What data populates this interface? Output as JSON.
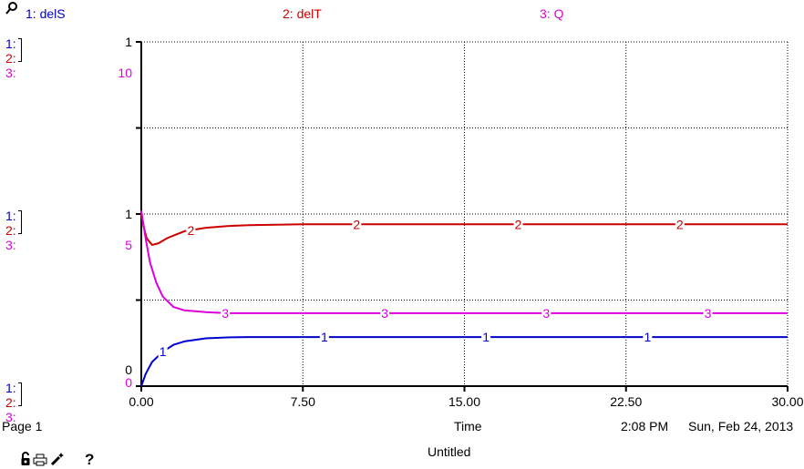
{
  "legend": [
    {
      "num": "1",
      "label": "1: delS",
      "color": "#0000cc"
    },
    {
      "num": "2",
      "label": "2: delT",
      "color": "#cc0000"
    },
    {
      "num": "3",
      "label": "3: Q",
      "color": "#dd00dd"
    }
  ],
  "axis_rows": [
    {
      "s1": "1",
      "s2": "1",
      "s3": "10",
      "prefixes": [
        "1:",
        "2:",
        "3:"
      ]
    },
    {
      "s1": "1",
      "s2": "",
      "s3": "5",
      "prefixes": [
        "1:",
        "2:",
        "3:"
      ]
    },
    {
      "s1": "0",
      "s2": "",
      "s3": "0",
      "prefixes": [
        "1:",
        "2:",
        "3:"
      ]
    }
  ],
  "footer": {
    "page": "Page 1",
    "xlabel": "Time",
    "time": "2:08 PM",
    "date": "Sun, Feb 24, 2013",
    "doc_title": "Untitled",
    "help": "?"
  },
  "icons": [
    "pin-icon",
    "lock-icon",
    "print-icon",
    "magic-wand-icon"
  ],
  "colors": {
    "delS": "#0000cc",
    "delT": "#cc0000",
    "Q": "#dd00dd"
  },
  "chart_data": {
    "type": "line",
    "xlabel": "Time",
    "xlim": [
      0,
      30
    ],
    "x_ticks": [
      "0.00",
      "7.50",
      "15.00",
      "22.50",
      "30.00"
    ],
    "grid": true,
    "series": [
      {
        "name": "delS",
        "color": "#0000cc",
        "ylim": [
          0,
          2
        ],
        "x": [
          0,
          0.2,
          0.5,
          1,
          1.5,
          2,
          3,
          4,
          5,
          7.5,
          15,
          22.5,
          30
        ],
        "values": [
          0,
          0.07,
          0.14,
          0.2,
          0.24,
          0.26,
          0.278,
          0.283,
          0.285,
          0.285,
          0.285,
          0.285,
          0.285
        ]
      },
      {
        "name": "delT",
        "color": "#cc0000",
        "ylim": [
          0,
          2
        ],
        "x": [
          0,
          0.1,
          0.25,
          0.5,
          0.8,
          1.2,
          1.6,
          2,
          3,
          4,
          5,
          7.5,
          15,
          22.5,
          30
        ],
        "values": [
          1.0,
          0.93,
          0.86,
          0.82,
          0.83,
          0.86,
          0.88,
          0.9,
          0.92,
          0.93,
          0.935,
          0.94,
          0.94,
          0.94,
          0.94
        ]
      },
      {
        "name": "Q",
        "color": "#dd00dd",
        "ylim": [
          0,
          10
        ],
        "x": [
          0,
          0.2,
          0.4,
          0.7,
          1,
          1.5,
          2,
          3,
          4,
          5,
          7.5,
          15,
          22.5,
          30
        ],
        "values": [
          5.1,
          4.3,
          3.6,
          3.0,
          2.6,
          2.3,
          2.2,
          2.15,
          2.12,
          2.12,
          2.12,
          2.12,
          2.12,
          2.12
        ]
      }
    ]
  }
}
